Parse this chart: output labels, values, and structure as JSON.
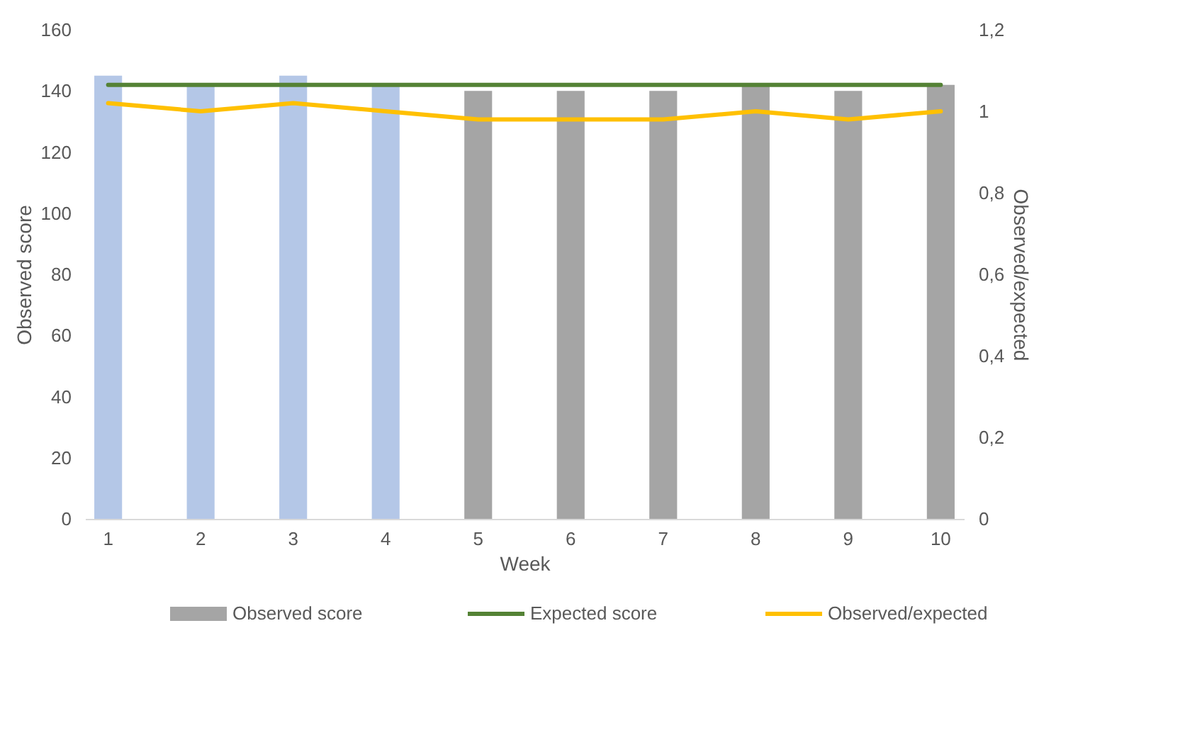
{
  "chart_data": {
    "type": "bar",
    "xlabel": "Week",
    "ylabel": "Observed score",
    "y2label": "Observed/expected",
    "categories": [
      "1",
      "2",
      "3",
      "4",
      "5",
      "6",
      "7",
      "8",
      "9",
      "10"
    ],
    "series": [
      {
        "name": "Observed score",
        "color": "#a5a5a5",
        "colors": [
          "#b4c7e7",
          "#b4c7e7",
          "#b4c7e7",
          "#b4c7e7",
          "#a5a5a5",
          "#a5a5a5",
          "#a5a5a5",
          "#a5a5a5",
          "#a5a5a5",
          "#a5a5a5"
        ],
        "values": [
          145,
          142,
          145,
          142,
          140,
          140,
          140,
          142,
          140,
          142
        ]
      },
      {
        "name": "Expected score",
        "type": "line",
        "color": "#548235",
        "values": [
          142,
          142,
          142,
          142,
          142,
          142,
          142,
          142,
          142,
          142
        ]
      },
      {
        "name": "Observed/expected",
        "type": "line",
        "axis": "y2",
        "color": "#ffc000",
        "values": [
          1.02,
          1.0,
          1.02,
          1.0,
          0.98,
          0.98,
          0.98,
          1.0,
          0.98,
          1.0
        ]
      }
    ],
    "ylim": [
      0,
      160
    ],
    "yticks": [
      0,
      20,
      40,
      60,
      80,
      100,
      120,
      140,
      160
    ],
    "y2lim": [
      0,
      1.2
    ],
    "y2ticks": [
      {
        "value": 0,
        "label": "0"
      },
      {
        "value": 0.2,
        "label": "0,2"
      },
      {
        "value": 0.4,
        "label": "0,4"
      },
      {
        "value": 0.6,
        "label": "0,6"
      },
      {
        "value": 0.8,
        "label": "0,8"
      },
      {
        "value": 1,
        "label": "1"
      },
      {
        "value": 1.2,
        "label": "1,2"
      }
    ],
    "grid": false,
    "legend": "bottom"
  }
}
